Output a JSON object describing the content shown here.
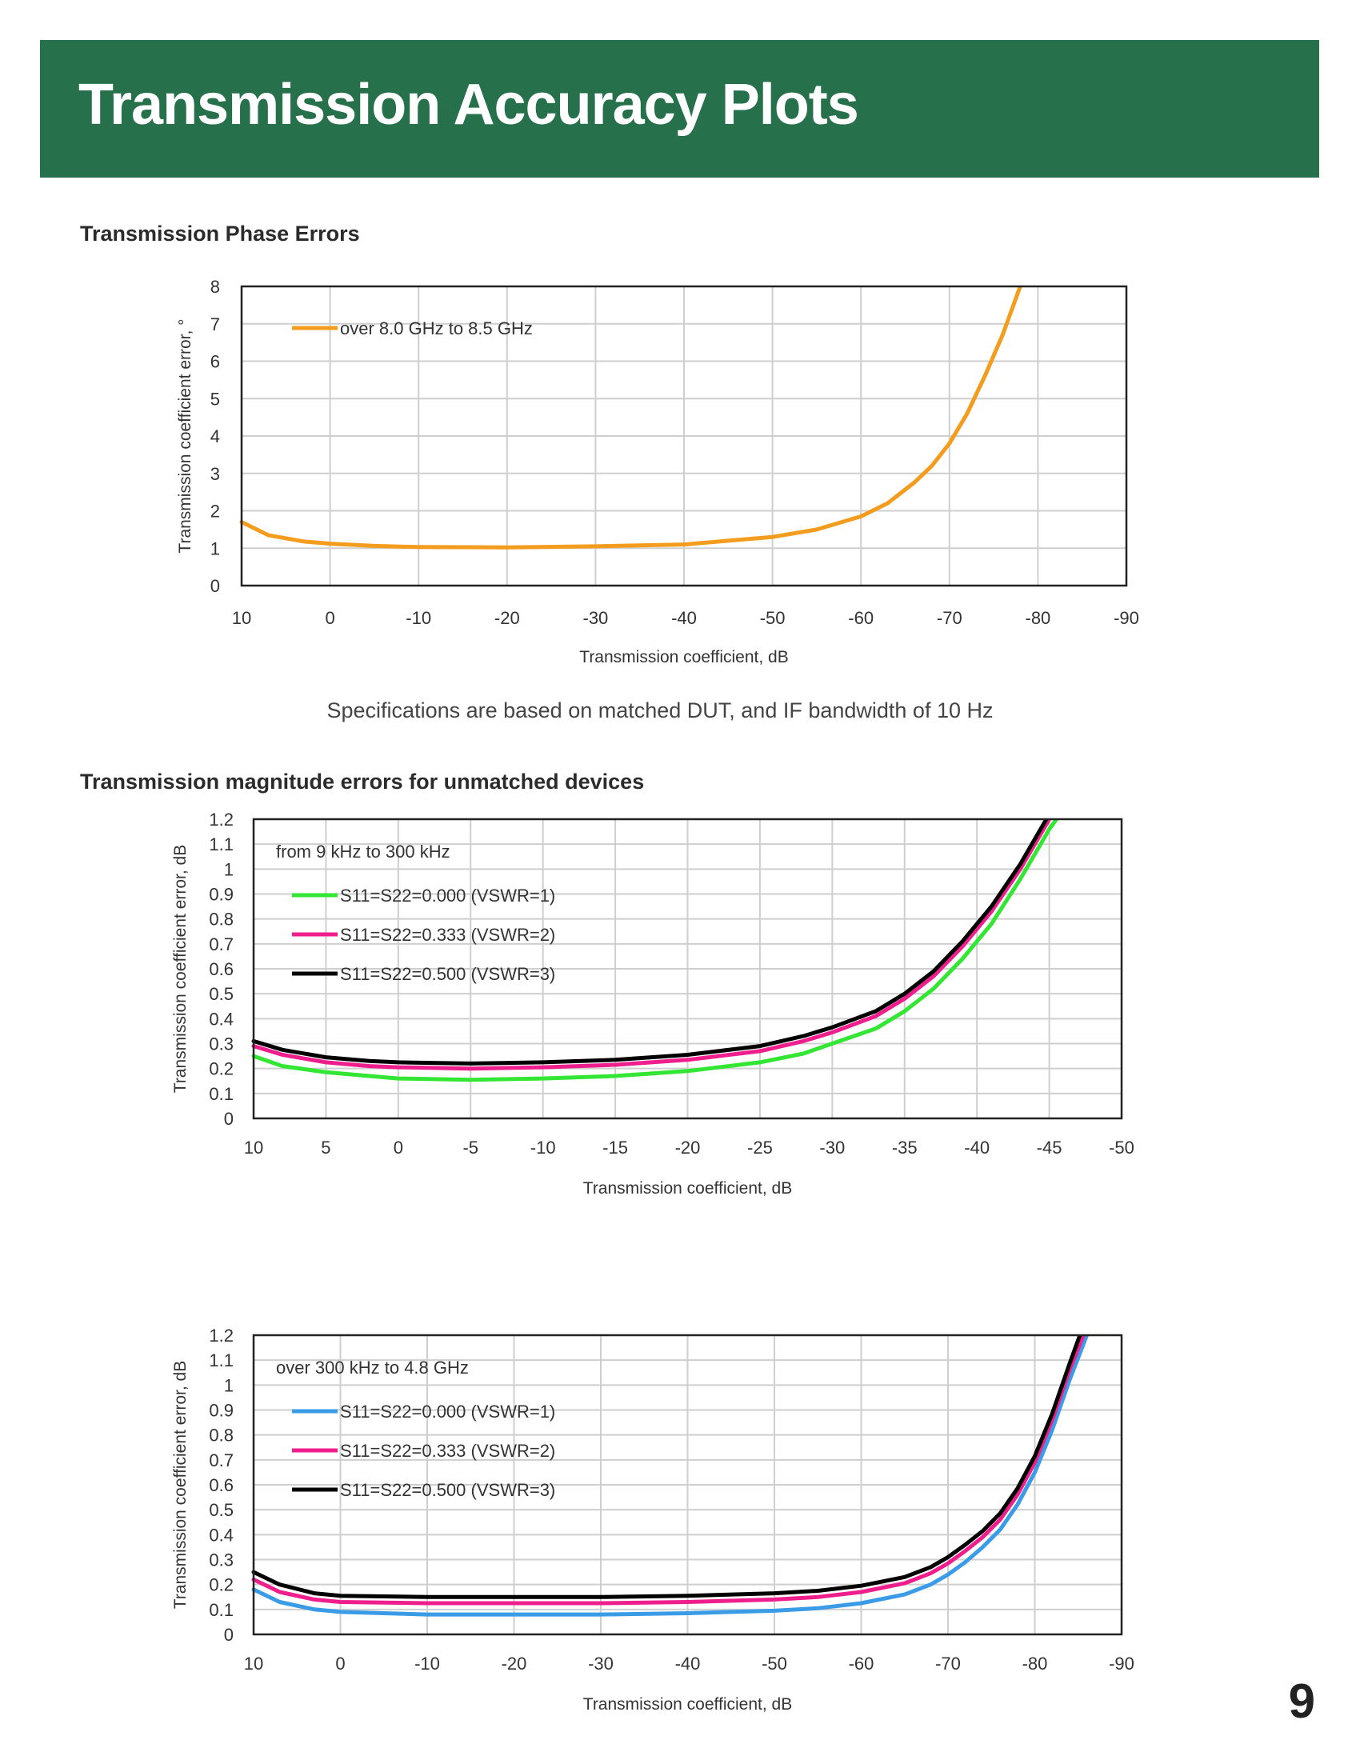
{
  "header": {
    "title": "Transmission Accuracy Plots"
  },
  "sections": {
    "phase_heading": "Transmission Phase Errors",
    "note": "Specifications are based on matched DUT, and IF bandwidth of 10 Hz",
    "magnitude_heading": "Transmission magnitude errors for unmatched devices"
  },
  "page_number": "9",
  "colors": {
    "header_bg": "#26704b",
    "orange": "#f39c1d",
    "green": "#33e633",
    "pink": "#ee1f8c",
    "black": "#000000",
    "blue": "#3a9be6"
  },
  "chart_data": [
    {
      "type": "line",
      "title": "",
      "xlabel": "Transmission coefficient, dB",
      "ylabel": "Transmission coefficient error, °",
      "xlim": [
        10,
        -90
      ],
      "ylim": [
        0,
        8
      ],
      "x_ticks": [
        10,
        0,
        -10,
        -20,
        -30,
        -40,
        -50,
        -60,
        -70,
        -80,
        -90
      ],
      "y_ticks": [
        0,
        1,
        2,
        3,
        4,
        5,
        6,
        7,
        8
      ],
      "grid": true,
      "legend_title": "",
      "legend_position": "top-left",
      "series": [
        {
          "name": "over 8.0 GHz to 8.5 GHz",
          "color": "#f39c1d",
          "x": [
            10,
            7,
            3,
            0,
            -5,
            -10,
            -20,
            -30,
            -40,
            -45,
            -50,
            -55,
            -60,
            -63,
            -66,
            -68,
            -70,
            -72,
            -74,
            -76,
            -78
          ],
          "y": [
            1.7,
            1.35,
            1.18,
            1.12,
            1.06,
            1.03,
            1.02,
            1.05,
            1.1,
            1.2,
            1.3,
            1.5,
            1.85,
            2.2,
            2.75,
            3.2,
            3.8,
            4.6,
            5.6,
            6.7,
            8.0
          ]
        }
      ]
    },
    {
      "type": "line",
      "title": "",
      "xlabel": "Transmission coefficient, dB",
      "ylabel": "Transmission coefficient error, dB",
      "xlim": [
        10,
        -50
      ],
      "ylim": [
        0,
        1.2
      ],
      "x_ticks": [
        10,
        5,
        0,
        -5,
        -10,
        -15,
        -20,
        -25,
        -30,
        -35,
        -40,
        -45,
        -50
      ],
      "y_ticks": [
        0,
        0.1,
        0.2,
        0.3,
        0.4,
        0.5,
        0.6,
        0.7,
        0.8,
        0.9,
        1,
        1.1,
        1.2
      ],
      "grid": true,
      "legend_title": "from 9 kHz to 300 kHz",
      "legend_position": "top-left",
      "series": [
        {
          "name": "S11=S22=0.000 (VSWR=1)",
          "color": "#33e633",
          "x": [
            10,
            8,
            5,
            2,
            0,
            -5,
            -10,
            -15,
            -20,
            -25,
            -28,
            -30,
            -33,
            -35,
            -37,
            -39,
            -41,
            -43,
            -45,
            -45.5
          ],
          "y": [
            0.25,
            0.21,
            0.185,
            0.17,
            0.16,
            0.155,
            0.16,
            0.17,
            0.19,
            0.225,
            0.26,
            0.3,
            0.36,
            0.43,
            0.52,
            0.64,
            0.78,
            0.96,
            1.16,
            1.2
          ]
        },
        {
          "name": "S11=S22=0.333 (VSWR=2)",
          "color": "#ee1f8c",
          "x": [
            10,
            8,
            5,
            2,
            0,
            -5,
            -10,
            -15,
            -20,
            -25,
            -28,
            -30,
            -33,
            -35,
            -37,
            -39,
            -41,
            -43,
            -44.7,
            -45
          ],
          "y": [
            0.29,
            0.255,
            0.225,
            0.21,
            0.205,
            0.2,
            0.205,
            0.215,
            0.235,
            0.27,
            0.31,
            0.345,
            0.41,
            0.48,
            0.57,
            0.69,
            0.83,
            1.0,
            1.17,
            1.2
          ]
        },
        {
          "name": "S11=S22=0.500 (VSWR=3)",
          "color": "#000000",
          "x": [
            10,
            8,
            5,
            2,
            0,
            -5,
            -10,
            -15,
            -20,
            -25,
            -28,
            -30,
            -33,
            -35,
            -37,
            -39,
            -41,
            -43,
            -44.4,
            -44.8
          ],
          "y": [
            0.31,
            0.275,
            0.245,
            0.23,
            0.225,
            0.22,
            0.225,
            0.235,
            0.255,
            0.29,
            0.33,
            0.365,
            0.43,
            0.5,
            0.59,
            0.71,
            0.85,
            1.02,
            1.16,
            1.2
          ]
        }
      ]
    },
    {
      "type": "line",
      "title": "",
      "xlabel": "Transmission coefficient, dB",
      "ylabel": "Transmission coefficient error, dB",
      "xlim": [
        10,
        -90
      ],
      "ylim": [
        0,
        1.2
      ],
      "x_ticks": [
        10,
        0,
        -10,
        -20,
        -30,
        -40,
        -50,
        -60,
        -70,
        -80,
        -90
      ],
      "y_ticks": [
        0,
        0.1,
        0.2,
        0.3,
        0.4,
        0.5,
        0.6,
        0.7,
        0.8,
        0.9,
        1,
        1.1,
        1.2
      ],
      "grid": true,
      "legend_title": "over 300 kHz to 4.8 GHz",
      "legend_position": "top-left",
      "series": [
        {
          "name": "S11=S22=0.000 (VSWR=1)",
          "color": "#3a9be6",
          "x": [
            10,
            7,
            3,
            0,
            -10,
            -20,
            -30,
            -40,
            -50,
            -55,
            -60,
            -65,
            -68,
            -70,
            -72,
            -74,
            -76,
            -78,
            -80,
            -82,
            -84,
            -86
          ],
          "y": [
            0.18,
            0.13,
            0.1,
            0.09,
            0.08,
            0.08,
            0.08,
            0.085,
            0.095,
            0.105,
            0.125,
            0.16,
            0.2,
            0.24,
            0.29,
            0.35,
            0.42,
            0.52,
            0.65,
            0.82,
            1.02,
            1.2
          ]
        },
        {
          "name": "S11=S22=0.333 (VSWR=2)",
          "color": "#ee1f8c",
          "x": [
            10,
            7,
            3,
            0,
            -10,
            -20,
            -30,
            -40,
            -50,
            -55,
            -60,
            -65,
            -68,
            -70,
            -72,
            -74,
            -76,
            -78,
            -80,
            -82,
            -84,
            -85.6
          ],
          "y": [
            0.22,
            0.17,
            0.14,
            0.13,
            0.125,
            0.125,
            0.125,
            0.13,
            0.14,
            0.15,
            0.17,
            0.205,
            0.245,
            0.285,
            0.335,
            0.39,
            0.46,
            0.56,
            0.69,
            0.86,
            1.06,
            1.2
          ]
        },
        {
          "name": "S11=S22=0.500 (VSWR=3)",
          "color": "#000000",
          "x": [
            10,
            7,
            3,
            0,
            -10,
            -20,
            -30,
            -40,
            -50,
            -55,
            -60,
            -65,
            -68,
            -70,
            -72,
            -74,
            -76,
            -78,
            -80,
            -82,
            -84,
            -85.2
          ],
          "y": [
            0.25,
            0.2,
            0.165,
            0.155,
            0.15,
            0.15,
            0.15,
            0.155,
            0.165,
            0.175,
            0.195,
            0.23,
            0.27,
            0.31,
            0.36,
            0.415,
            0.485,
            0.585,
            0.715,
            0.885,
            1.085,
            1.2
          ]
        }
      ]
    }
  ]
}
